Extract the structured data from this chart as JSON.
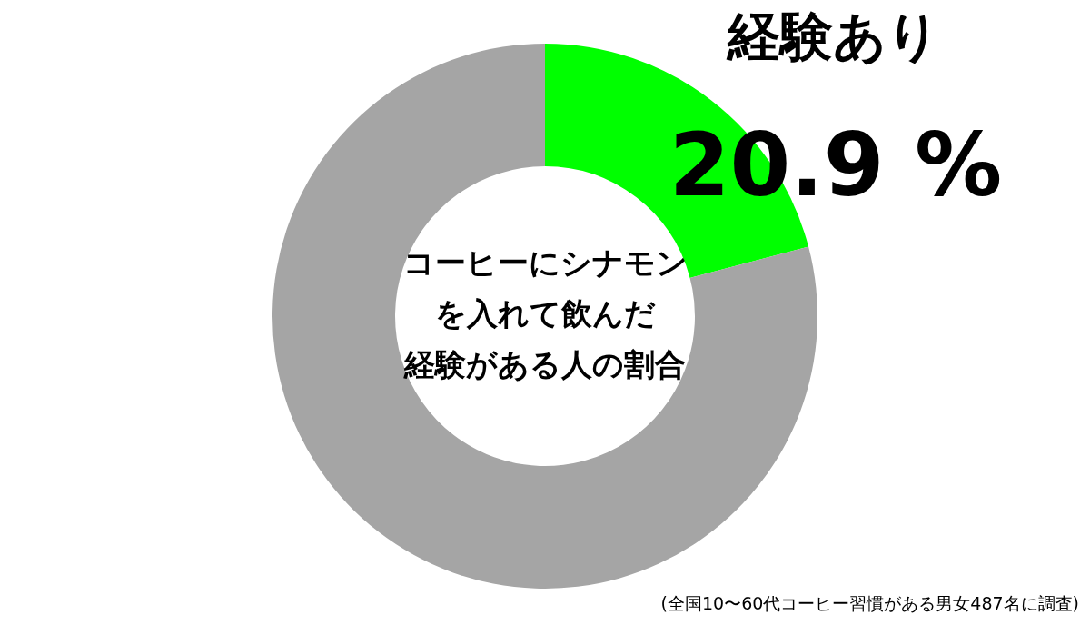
{
  "chart_data": {
    "type": "donut",
    "title": "コーヒーにシナモンを入れて飲んだ経験がある人の割合",
    "categories": [
      "経験あり",
      null
    ],
    "values": [
      20.9,
      79.1
    ],
    "colors": [
      "#00ff00",
      "#a5a5a5"
    ],
    "value_labels": [
      "20.9 %",
      null
    ],
    "legend": false,
    "annotations": [
      "(全国10〜60代コーヒー習慣がある男女487名に調査)"
    ]
  }
}
